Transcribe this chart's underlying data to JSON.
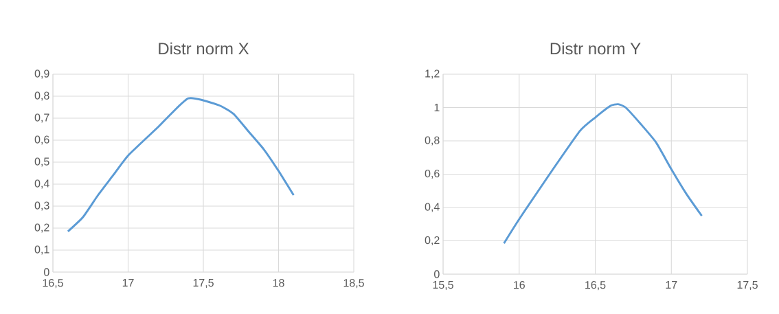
{
  "chart_data": [
    {
      "type": "line",
      "title": "Distr norm X",
      "grid": true,
      "xlim": [
        16.5,
        18.5
      ],
      "xticks": [
        {
          "value": 16.5,
          "label": "16,5"
        },
        {
          "value": 17,
          "label": "17"
        },
        {
          "value": 17.5,
          "label": "17,5"
        },
        {
          "value": 18,
          "label": "18"
        },
        {
          "value": 18.5,
          "label": "18,5"
        }
      ],
      "ylim": [
        0,
        0.9
      ],
      "yticks": [
        {
          "value": 0,
          "label": "0"
        },
        {
          "value": 0.1,
          "label": "0,1"
        },
        {
          "value": 0.2,
          "label": "0,2"
        },
        {
          "value": 0.3,
          "label": "0,3"
        },
        {
          "value": 0.4,
          "label": "0,4"
        },
        {
          "value": 0.5,
          "label": "0,5"
        },
        {
          "value": 0.6,
          "label": "0,6"
        },
        {
          "value": 0.7,
          "label": "0,7"
        },
        {
          "value": 0.8,
          "label": "0,8"
        },
        {
          "value": 0.9,
          "label": "0,9"
        }
      ],
      "series": [
        {
          "color": "#5b9bd5",
          "x": [
            16.6,
            16.7,
            16.8,
            16.9,
            17.0,
            17.2,
            17.4,
            17.6,
            17.7,
            17.8,
            17.9,
            18.0,
            18.1
          ],
          "values": [
            0.185,
            0.25,
            0.35,
            0.44,
            0.53,
            0.66,
            0.79,
            0.76,
            0.72,
            0.64,
            0.56,
            0.46,
            0.35
          ]
        }
      ]
    },
    {
      "type": "line",
      "title": "Distr norm Y",
      "grid": true,
      "xlim": [
        15.5,
        17.5
      ],
      "xticks": [
        {
          "value": 15.5,
          "label": "15,5"
        },
        {
          "value": 16,
          "label": "16"
        },
        {
          "value": 16.5,
          "label": "16,5"
        },
        {
          "value": 17,
          "label": "17"
        },
        {
          "value": 17.5,
          "label": "17,5"
        }
      ],
      "ylim": [
        0,
        1.2
      ],
      "yticks": [
        {
          "value": 0,
          "label": "0"
        },
        {
          "value": 0.2,
          "label": "0,2"
        },
        {
          "value": 0.4,
          "label": "0,4"
        },
        {
          "value": 0.6,
          "label": "0,6"
        },
        {
          "value": 0.8,
          "label": "0,8"
        },
        {
          "value": 1,
          "label": "1"
        },
        {
          "value": 1.2,
          "label": "1,2"
        }
      ],
      "series": [
        {
          "color": "#5b9bd5",
          "x": [
            15.9,
            16.0,
            16.2,
            16.4,
            16.5,
            16.6,
            16.65,
            16.7,
            16.8,
            16.9,
            17.0,
            17.1,
            17.2
          ],
          "values": [
            0.185,
            0.33,
            0.6,
            0.86,
            0.94,
            1.01,
            1.02,
            1.0,
            0.9,
            0.79,
            0.63,
            0.48,
            0.35
          ]
        }
      ]
    }
  ]
}
